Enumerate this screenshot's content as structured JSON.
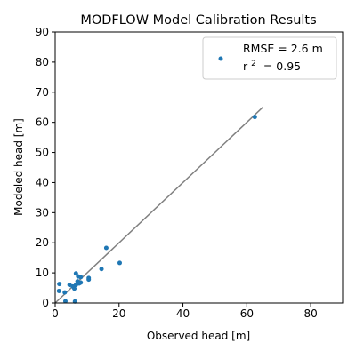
{
  "chart_data": {
    "type": "scatter",
    "title": "MODFLOW Model Calibration Results",
    "xlabel": "Observed head [m]",
    "ylabel": "Modeled head [m]",
    "xlim": [
      0,
      90
    ],
    "ylim": [
      0,
      90
    ],
    "xticks": [
      "0",
      "20",
      "40",
      "60",
      "80"
    ],
    "yticks": [
      "0",
      "10",
      "20",
      "30",
      "40",
      "50",
      "60",
      "70",
      "80",
      "90"
    ],
    "grid": false,
    "legend_position": "top-right",
    "legend_lines": [
      "RMSE = 2.6 m",
      "r",
      "2",
      " = 0.95"
    ],
    "colors": {
      "points": "#1f77b4",
      "line": "#808080",
      "axes": "#000000"
    },
    "series": [
      {
        "x": [
          62.5,
          16.0,
          20.2,
          14.5,
          6.5,
          7.2,
          8.0,
          10.5,
          10.5,
          7.0,
          8.0,
          7.5,
          6.5,
          5.5,
          6.0,
          4.5,
          1.3,
          1.2,
          3.0,
          3.2,
          6.2
        ],
        "y": [
          61.8,
          18.3,
          13.3,
          11.3,
          9.8,
          8.8,
          8.6,
          8.3,
          7.8,
          7.2,
          6.8,
          6.5,
          6.0,
          5.5,
          4.8,
          6.0,
          6.3,
          4.0,
          3.5,
          0.6,
          0.5
        ]
      }
    ],
    "line": {
      "x": [
        0,
        65
      ],
      "y": [
        0,
        65
      ]
    }
  }
}
